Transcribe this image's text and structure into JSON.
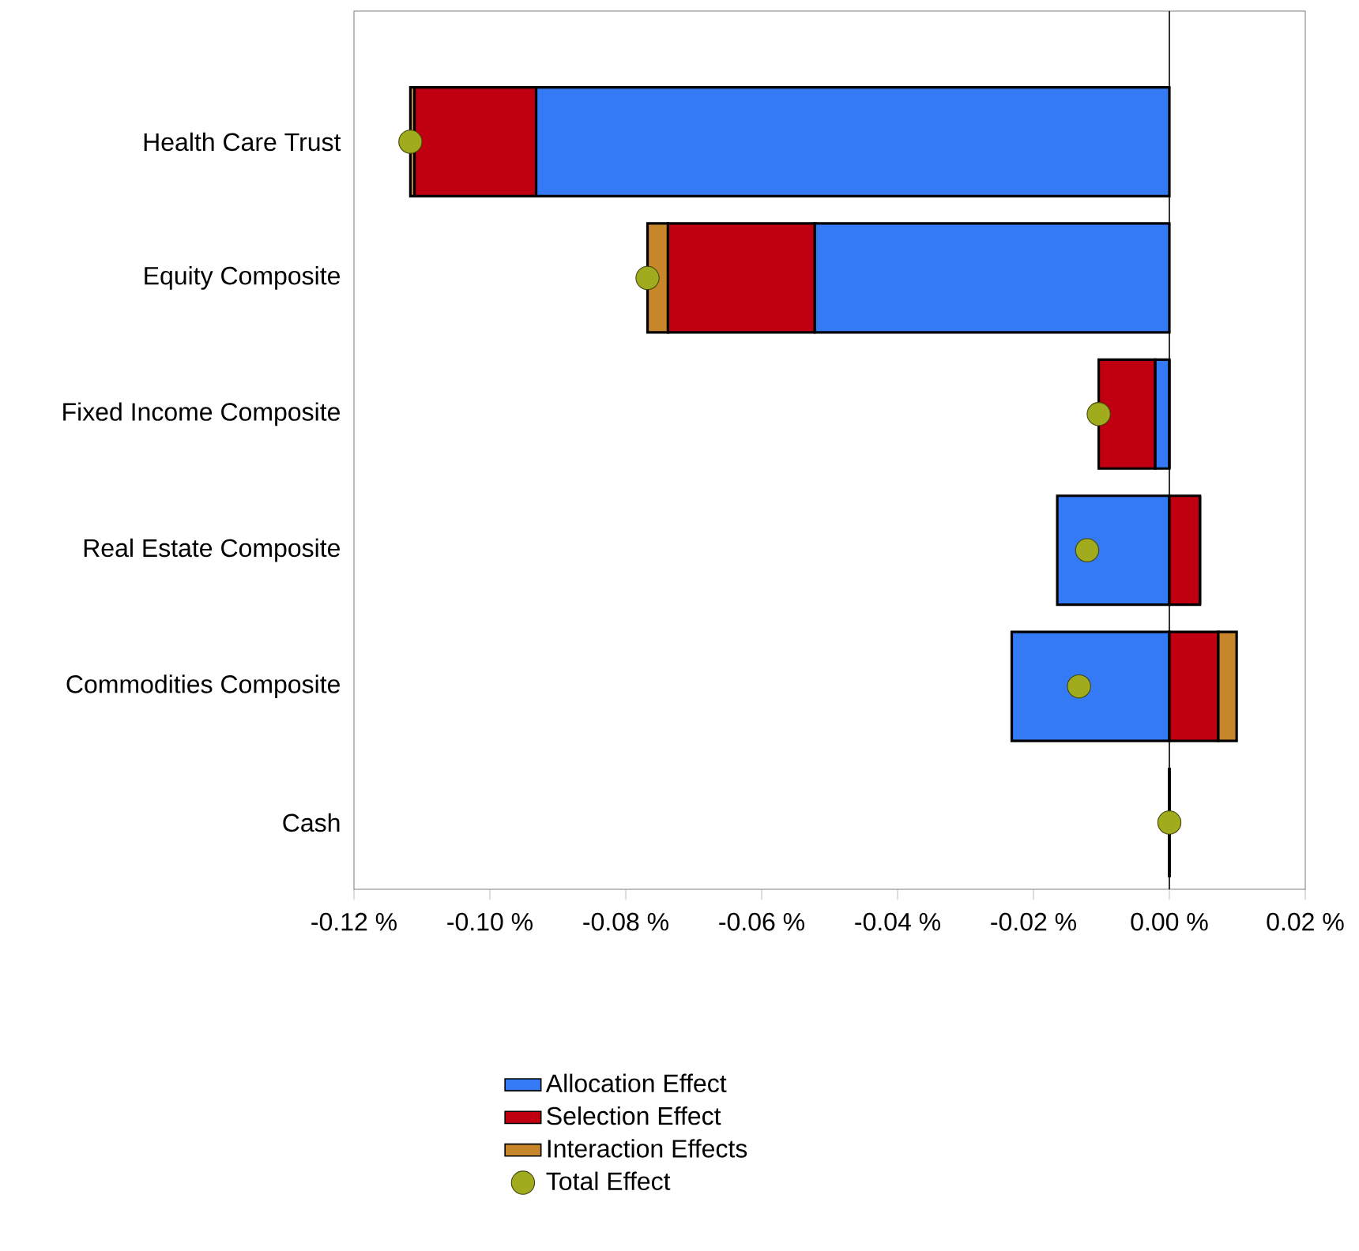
{
  "chart_data": {
    "type": "bar",
    "orientation": "horizontal",
    "stacked": true,
    "categories": [
      "Health Care Trust",
      "Equity Composite",
      "Fixed Income Composite",
      "Real Estate Composite",
      "Commodities Composite",
      "Cash"
    ],
    "series": [
      {
        "name": "Allocation Effect",
        "color": "#347af5",
        "values": [
          -0.0932,
          -0.0522,
          -0.0021,
          -0.0165,
          -0.0232,
          0
        ]
      },
      {
        "name": "Selection Effect",
        "color": "#c00010",
        "values": [
          -0.0179,
          -0.0216,
          -0.0083,
          0.0045,
          0.0072,
          0
        ]
      },
      {
        "name": "Interaction Effects",
        "color": "#c8862a",
        "values": [
          -0.0006,
          -0.003,
          0,
          0,
          0.0027,
          0
        ]
      },
      {
        "name": "Total Effect",
        "type": "scatter",
        "color": "#a0ab1e",
        "values": [
          -0.1117,
          -0.0768,
          -0.0104,
          -0.0121,
          -0.0133,
          0
        ]
      }
    ],
    "xlim": [
      -0.12,
      0.02
    ],
    "xticks": [
      {
        "value": -0.12,
        "label": "-0.12 %"
      },
      {
        "value": -0.1,
        "label": "-0.10 %"
      },
      {
        "value": -0.08,
        "label": "-0.08 %"
      },
      {
        "value": -0.06,
        "label": "-0.06 %"
      },
      {
        "value": -0.04,
        "label": "-0.04 %"
      },
      {
        "value": -0.02,
        "label": "-0.02 %"
      },
      {
        "value": 0,
        "label": "0.00 %"
      },
      {
        "value": 0.02,
        "label": "0.02 %"
      }
    ],
    "ref_lines": [
      {
        "axis": "x",
        "value": 0
      }
    ],
    "legend": "bottom"
  }
}
